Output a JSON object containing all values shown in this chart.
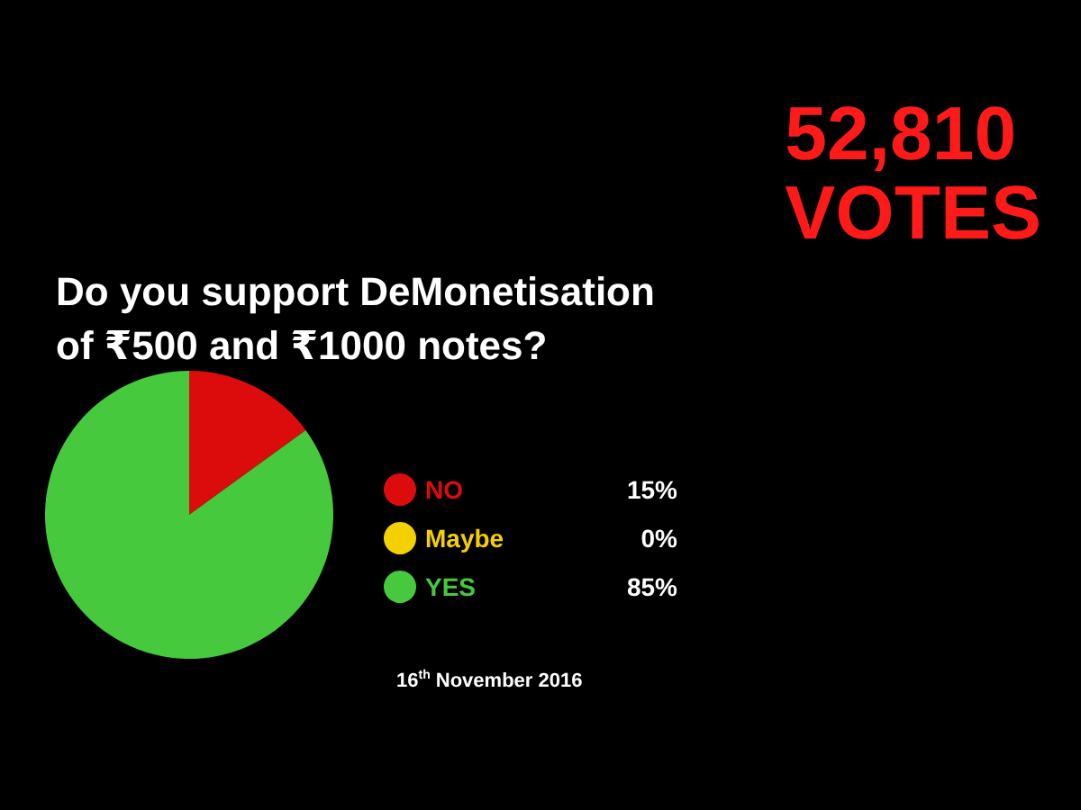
{
  "chart_data": {
    "type": "pie",
    "title": "Do you support DeMonetisation\nof ₹500 and ₹1000 notes?",
    "categories": [
      "NO",
      "Maybe",
      "YES"
    ],
    "values": [
      15,
      0,
      85
    ],
    "value_labels": [
      "15%",
      "0%",
      "85%"
    ],
    "colors": [
      "#dd0c0c",
      "#f5d000",
      "#46c93d"
    ],
    "legend": "right",
    "annotations": [
      "52,810 VOTES",
      "16$^{th}$ November 2016"
    ]
  }
}
